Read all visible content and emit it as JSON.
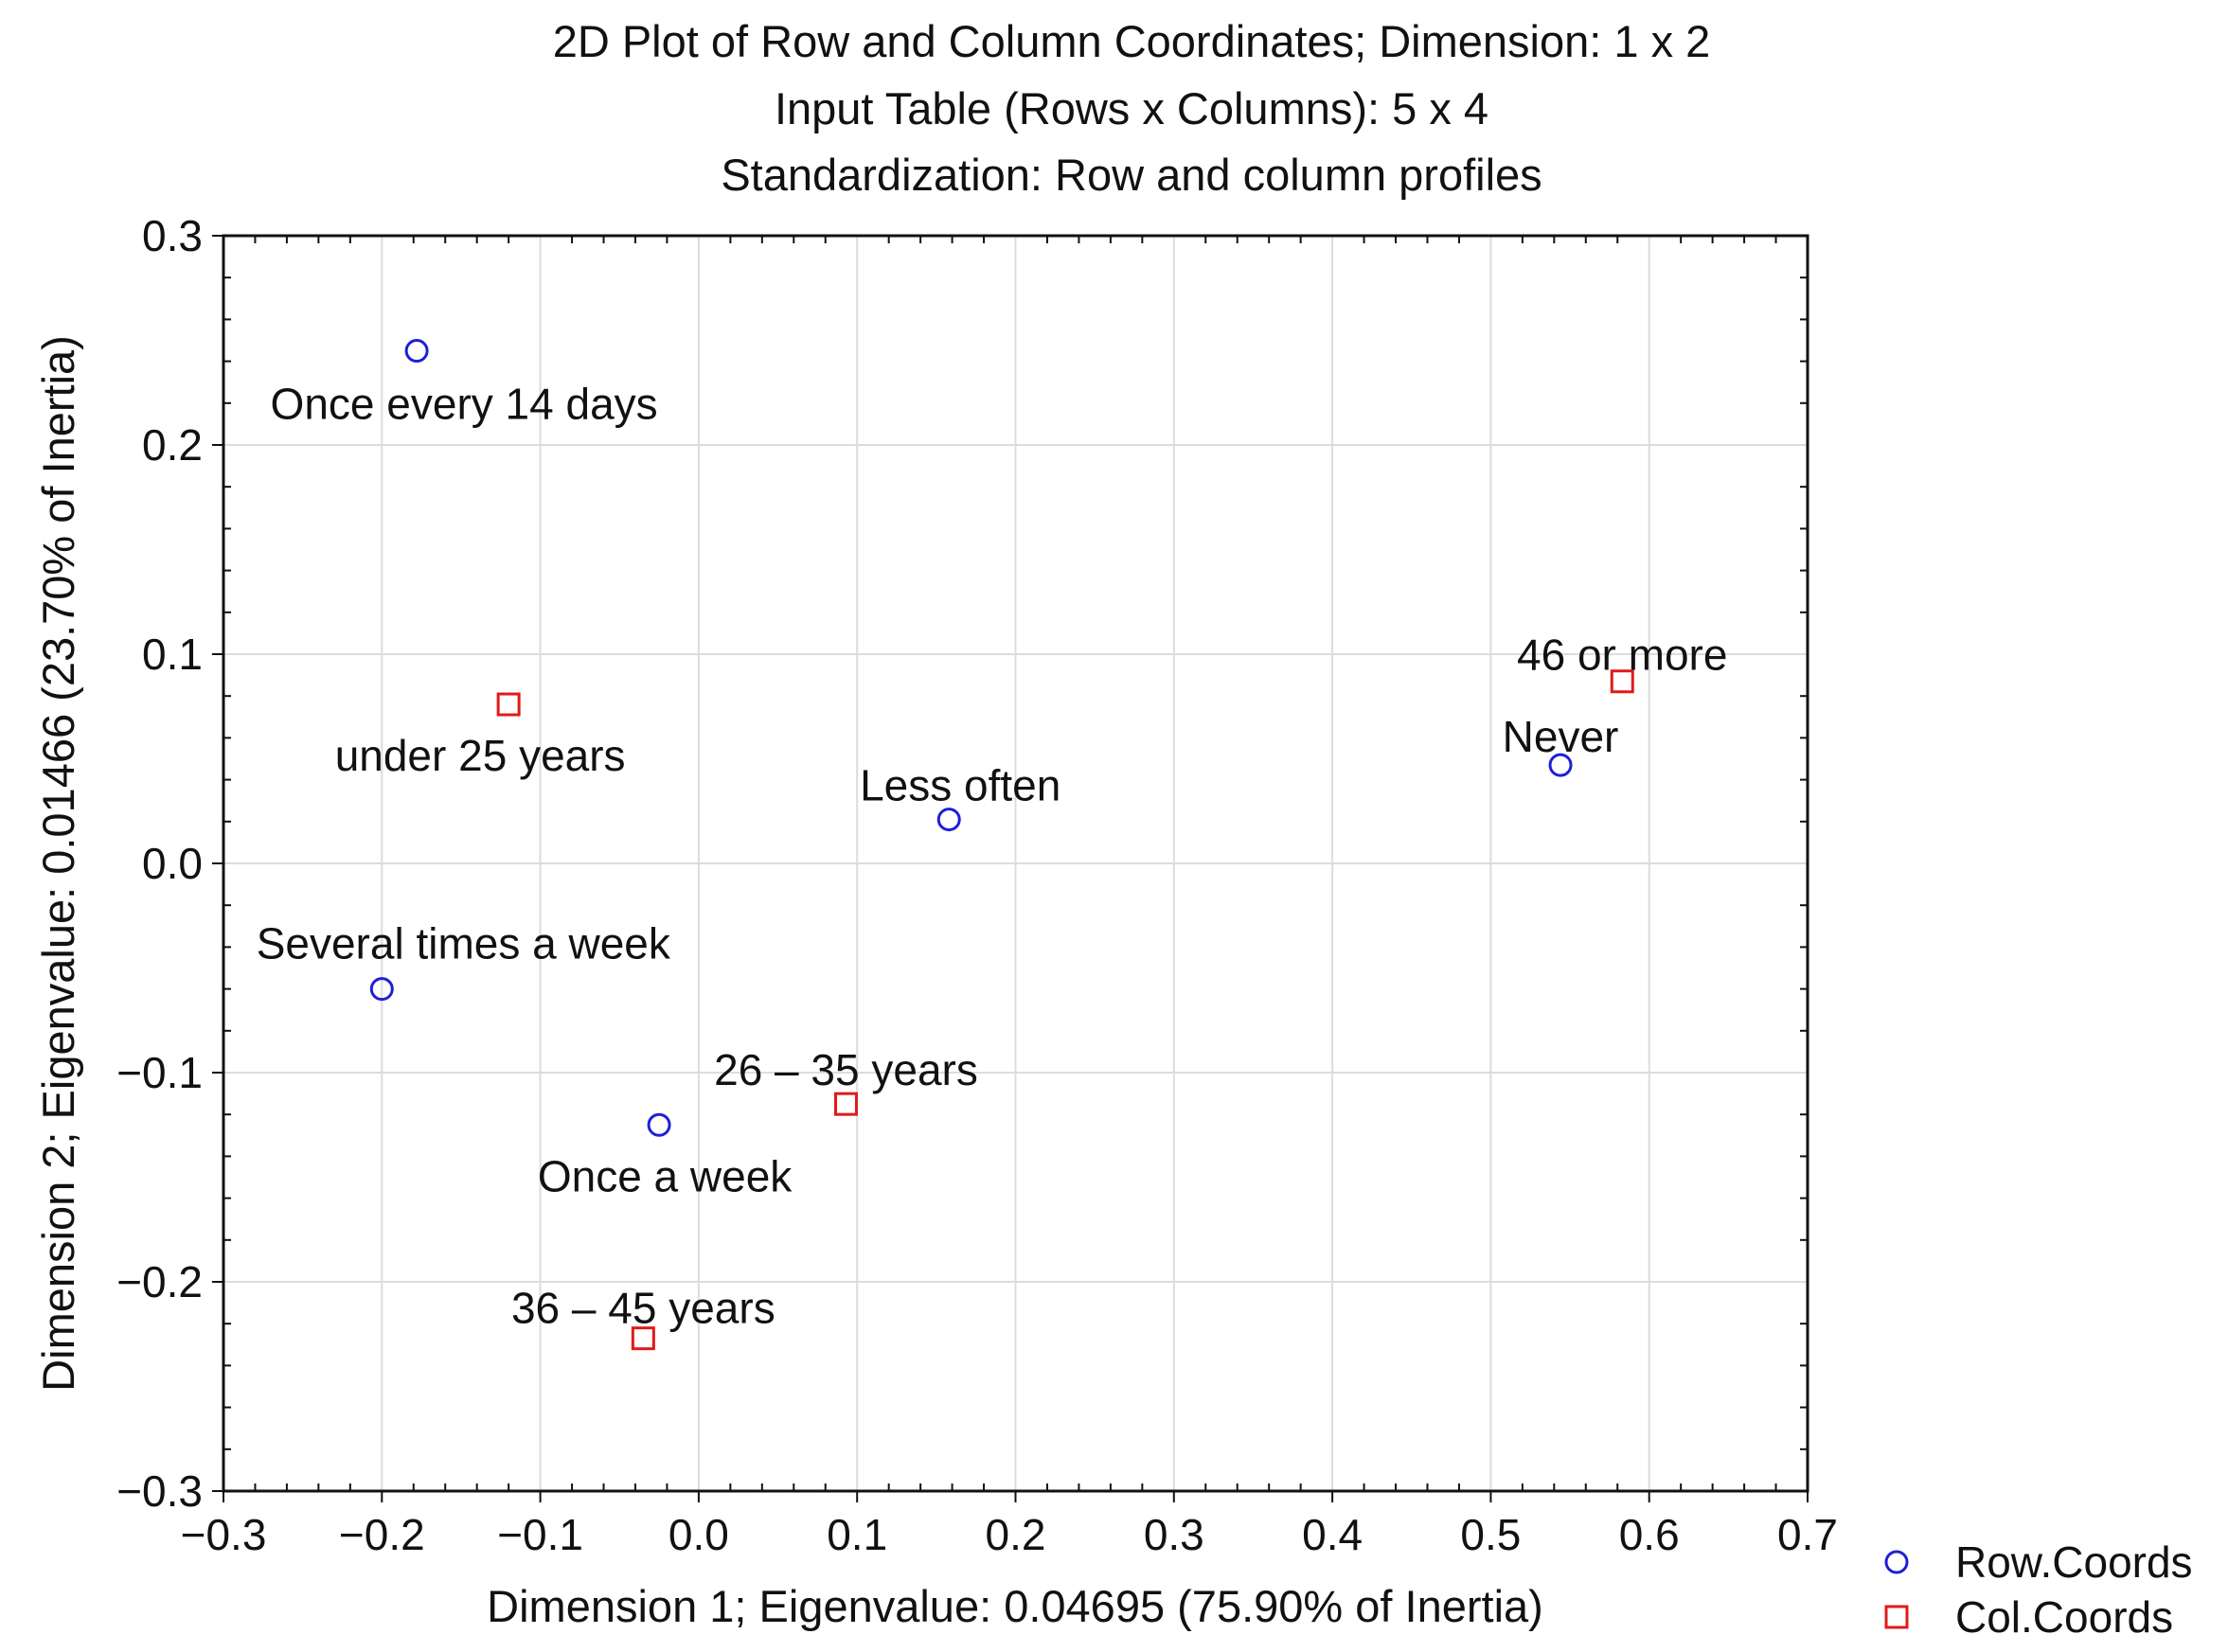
{
  "chart_data": {
    "type": "scatter",
    "title_lines": [
      "2D Plot of Row and Column Coordinates; Dimension:  1 x  2",
      "Input Table (Rows x Columns): 5 x 4",
      "Standardization: Row and column profiles"
    ],
    "xlabel": "Dimension 1; Eigenvalue: 0.04695 (75.90% of Inertia)",
    "ylabel": "Dimension 2; Eigenvalue: 0.01466 (23.70% of Inertia)",
    "xlim": [
      -0.3,
      0.7
    ],
    "ylim": [
      -0.3,
      0.3
    ],
    "x_ticks": [
      "−0.3",
      "−0.2",
      "−0.1",
      "0.0",
      "0.1",
      "0.2",
      "0.3",
      "0.4",
      "0.5",
      "0.6",
      "0.7"
    ],
    "y_ticks": [
      "0.3",
      "0.2",
      "0.1",
      "0.0",
      "−0.1",
      "−0.2",
      "−0.3"
    ],
    "grid": true,
    "legend_position": "bottom-right outside",
    "colors": {
      "row": "#1f1fd6",
      "col": "#e01a1a",
      "grid": "#dcdcdc"
    },
    "series": [
      {
        "name": "Row.Coords",
        "marker": "circle",
        "points": [
          {
            "label": "Once every 14 days",
            "x": -0.178,
            "y": 0.245
          },
          {
            "label": "Less often",
            "x": 0.158,
            "y": 0.021
          },
          {
            "label": "Never",
            "x": 0.544,
            "y": 0.047
          },
          {
            "label": "Several times a week",
            "x": -0.2,
            "y": -0.06
          },
          {
            "label": "Once a week",
            "x": -0.025,
            "y": -0.125
          }
        ]
      },
      {
        "name": "Col.Coords",
        "marker": "square",
        "points": [
          {
            "label": "under 25 years",
            "x": -0.12,
            "y": 0.076
          },
          {
            "label": "46 or more",
            "x": 0.583,
            "y": 0.087
          },
          {
            "label": "26 – 35 years",
            "x": 0.093,
            "y": -0.115
          },
          {
            "label": "36 – 45 years",
            "x": -0.035,
            "y": -0.227
          }
        ]
      }
    ]
  }
}
